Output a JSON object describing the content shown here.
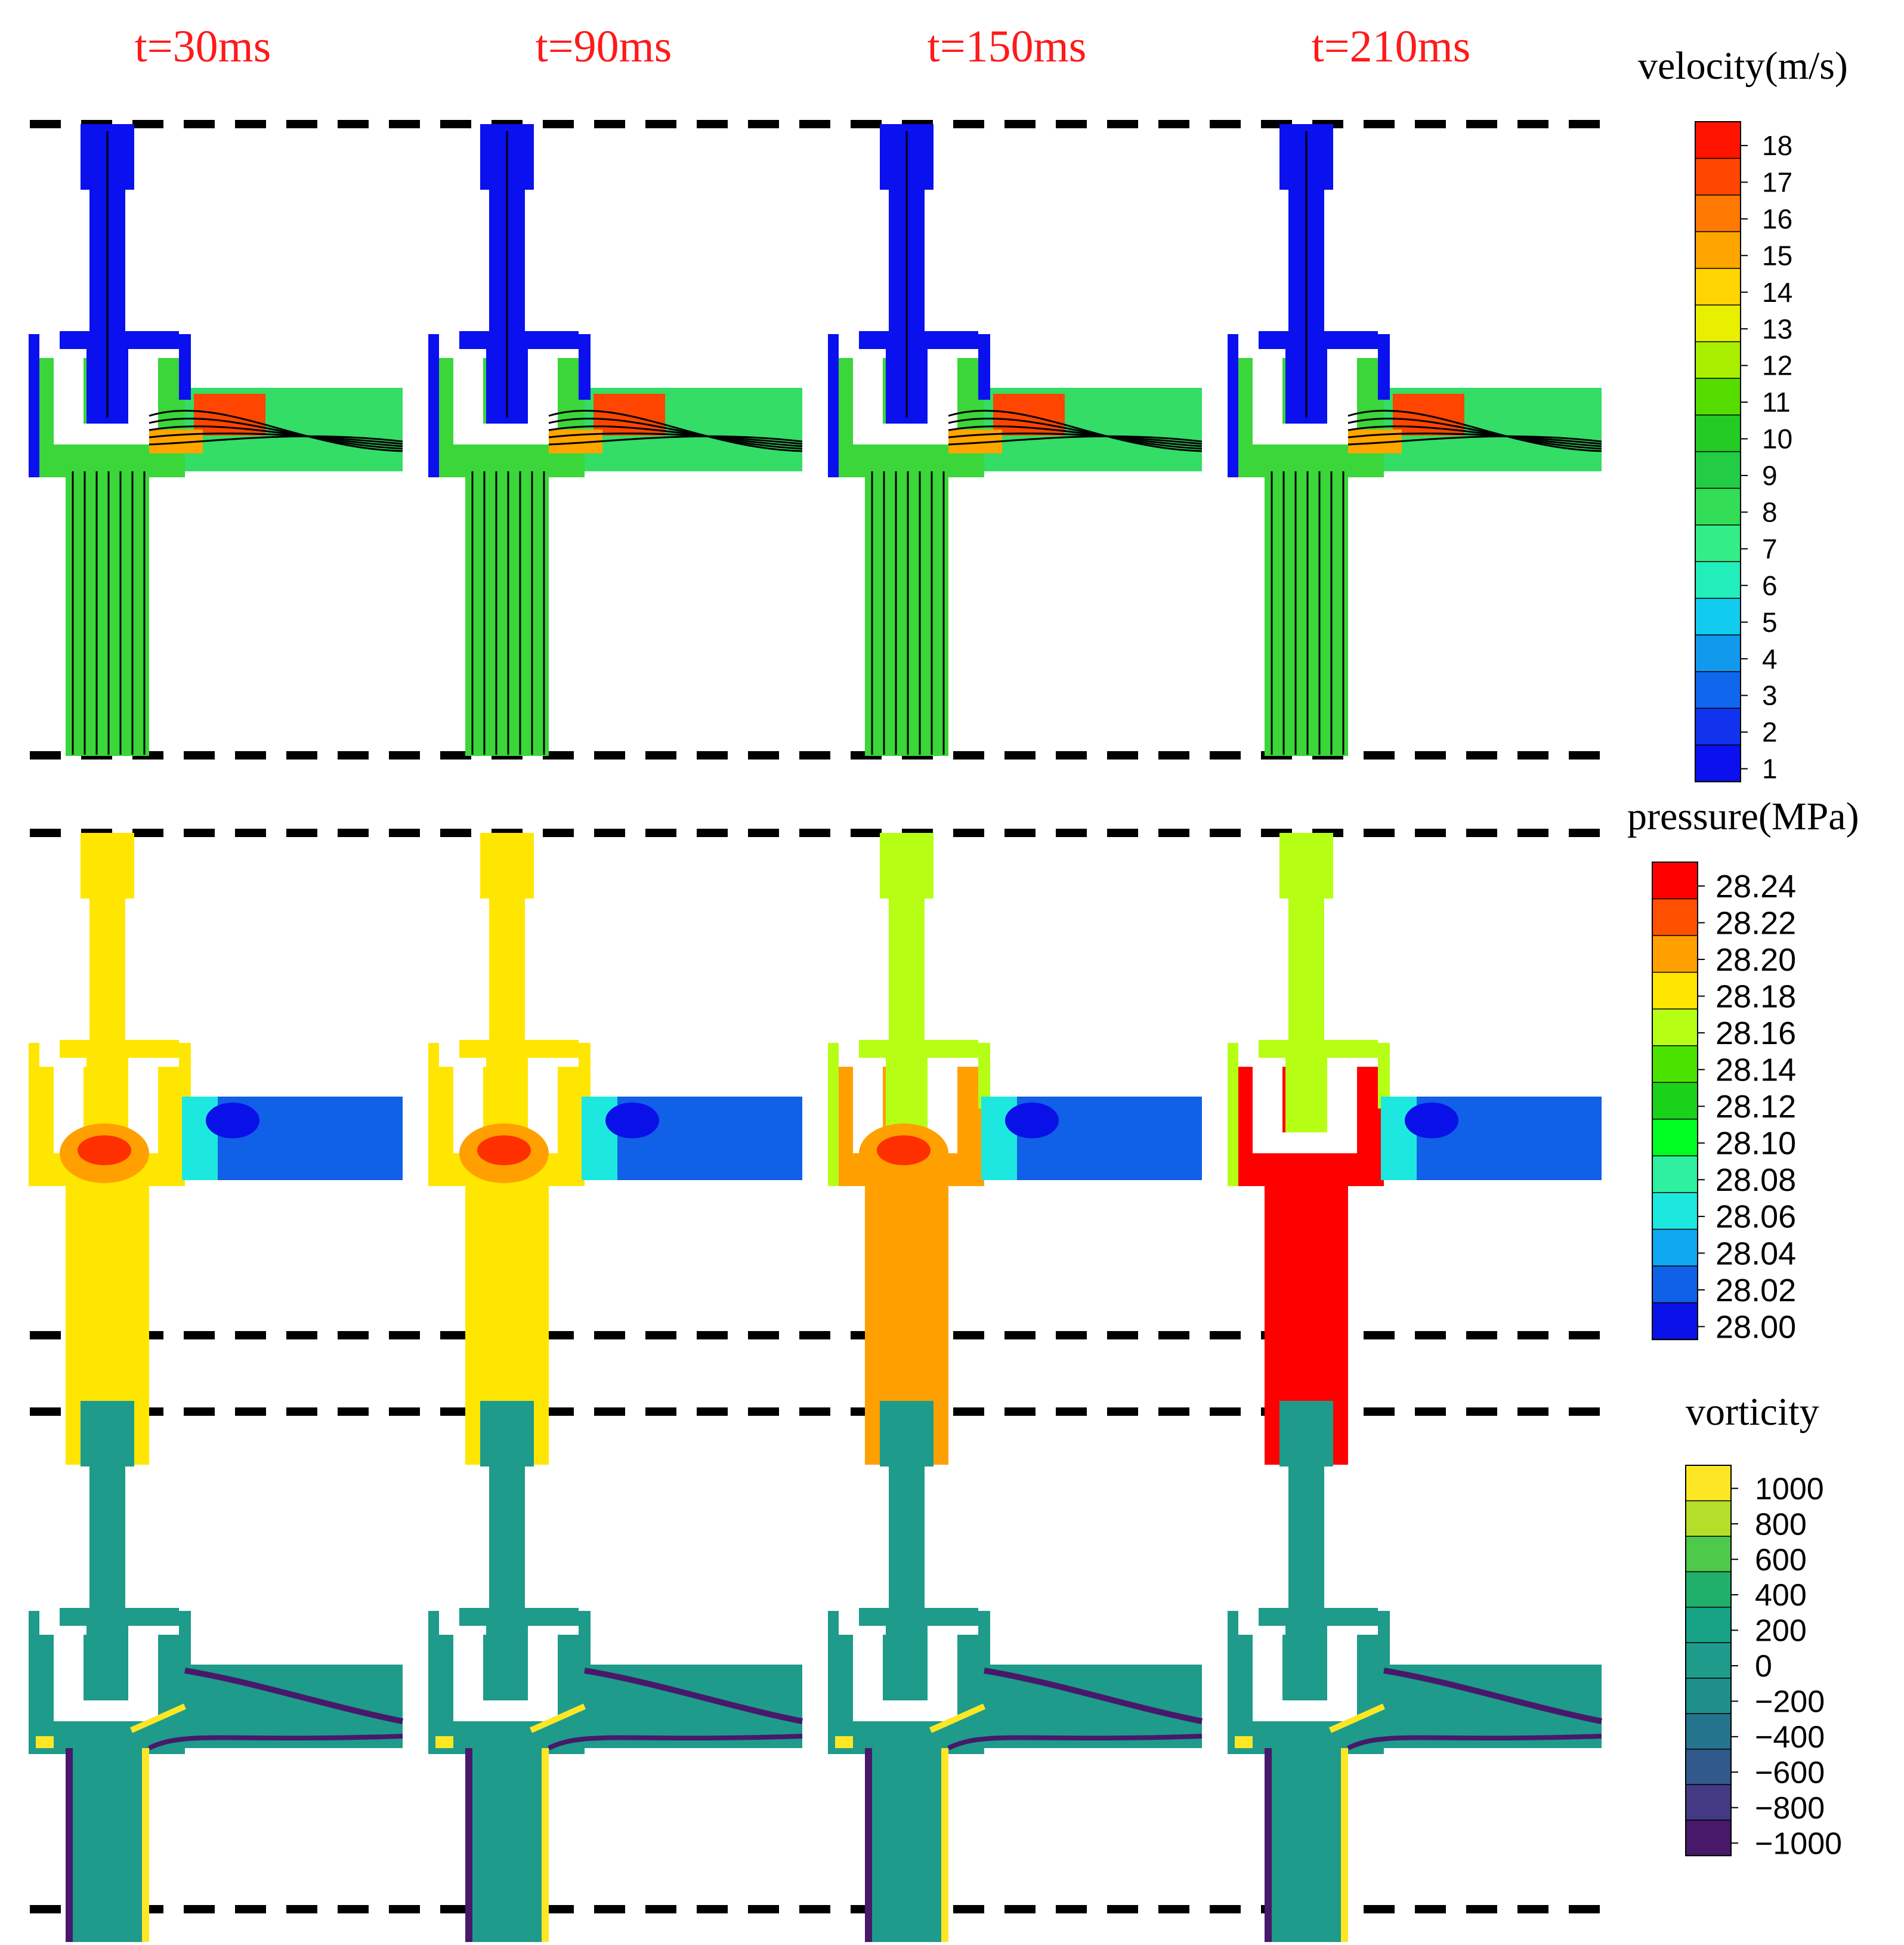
{
  "time_labels": [
    "t=30ms",
    "t=90ms",
    "t=150ms",
    "t=210ms"
  ],
  "velocity_bar": {
    "title": "velocity(m/s)",
    "ticks": [
      "18",
      "17",
      "16",
      "15",
      "14",
      "13",
      "12",
      "11",
      "10",
      "9",
      "8",
      "7",
      "6",
      "5",
      "4",
      "3",
      "2",
      "1"
    ],
    "colors": [
      "#ff1400",
      "#ff4500",
      "#ff7800",
      "#ffa500",
      "#ffd400",
      "#e8f000",
      "#aaee00",
      "#55dd00",
      "#22cc22",
      "#22cc44",
      "#33dd55",
      "#33ee88",
      "#22eebb",
      "#11ccee",
      "#1199ee",
      "#1166ee",
      "#1133ee",
      "#0a10ee"
    ]
  },
  "pressure_bar": {
    "title": "pressure(MPa)",
    "ticks": [
      "28.24",
      "28.22",
      "28.20",
      "28.18",
      "28.16",
      "28.14",
      "28.12",
      "28.10",
      "28.08",
      "28.06",
      "28.04",
      "28.02",
      "28.00"
    ],
    "colors": [
      "#ff0000",
      "#ff5000",
      "#ffa000",
      "#ffe600",
      "#b6ff14",
      "#4ce200",
      "#1ad21a",
      "#00ff20",
      "#2ef0a0",
      "#1de8e0",
      "#10a8f0",
      "#1060e8",
      "#0a10e8"
    ]
  },
  "vorticity_bar": {
    "title": "vorticity",
    "ticks": [
      "1000",
      "800",
      "600",
      "400",
      "200",
      "0",
      "−200",
      "−400",
      "−600",
      "−800",
      "−1000"
    ],
    "colors": [
      "#fde725",
      "#b5de2b",
      "#4fc94a",
      "#20b06b",
      "#16a386",
      "#1e9b8a",
      "#1f8f8c",
      "#25748e",
      "#31598c",
      "#443983",
      "#48186a"
    ]
  },
  "colors": {
    "vel_body": "#3ad63a",
    "vel_upper": "#0a10ee",
    "vel_outlet": "#33dd66",
    "vel_hot": "#ff4500",
    "pres_yellow": "#ffe600",
    "pres_lime": "#b6ff14",
    "pres_blue": "#1060e8",
    "pres_orange": "#ffa000",
    "pres_red": "#ff0000",
    "vort_teal": "#1e9b8a",
    "vort_dark": "#48186a",
    "vort_yellow": "#fde725",
    "time_label": "#ff1a1a"
  }
}
